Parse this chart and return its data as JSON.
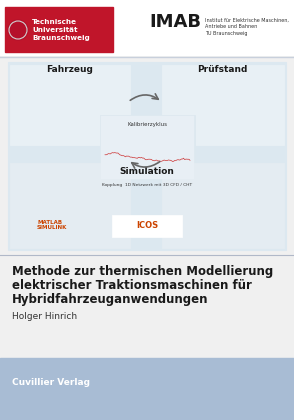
{
  "background_color": "#f0f0f0",
  "header_bg": "#ffffff",
  "tu_red": "#c0152a",
  "tu_text": "Technische\nUniversität\nBraunschweig",
  "imab_text": "IMAB",
  "imab_subtext": "Institut für Elektrische Maschinen,\nAntriebe und Bahnen\nTU Braunschweig",
  "diagram_bg": "#dce8f0",
  "diagram_border": "#aaaaaa",
  "fahrzeug_label": "Fahrzeug",
  "pruefstand_label": "Prüfstand",
  "kalibrierzyklus_label": "Kalibrierzyklus",
  "simulation_label": "Simulation",
  "kopplung_label": "Kopplung  1D Netzwerk mit 3D CFD / CHT",
  "matlab_label": "MATLAB\nSIMULINK",
  "title_line1": "Methode zur thermischen Modellierung",
  "title_line2": "elektrischer Traktionsmaschinen für",
  "title_line3": "Hybridfahrzeuganwendungen",
  "author": "Holger Hinrich",
  "publisher": "Cuvillier Verlag",
  "title_color": "#1a1a1a",
  "author_color": "#333333",
  "publisher_color": "#ffffff",
  "footer_bg": "#a8bcd4",
  "separator_color": "#b0b8c8",
  "top_separator_color": "#c8d0dc",
  "white": "#ffffff",
  "light_gray": "#e8e8e8"
}
